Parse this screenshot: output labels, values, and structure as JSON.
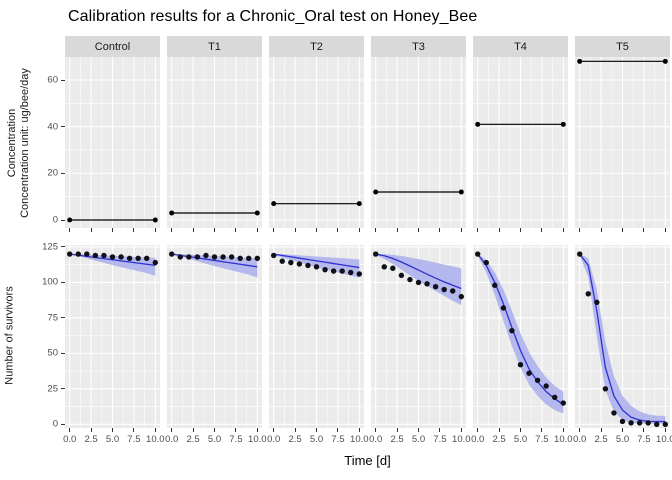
{
  "title": "Calibration results for a Chronic_Oral test on Honey_Bee",
  "facets": [
    "Control",
    "T1",
    "T2",
    "T3",
    "T4",
    "T5"
  ],
  "axes": {
    "x_title": "Time [d]",
    "x_tick_labels": [
      "0.0",
      "2.5",
      "5.0",
      "7.5",
      "10.0"
    ],
    "x_tick_values": [
      0,
      2.5,
      5,
      7.5,
      10
    ],
    "top_y_title_lines": [
      "Concentration",
      "Concentration unit: ug/bee/day"
    ],
    "top_y_ticks": [
      0,
      20,
      40,
      60
    ],
    "bottom_y_title": "Number of survivors",
    "bottom_y_ticks": [
      0,
      25,
      50,
      75,
      100,
      125
    ]
  },
  "colors": {
    "strip_bg": "#d9d9d9",
    "strip_text": "#1a1a1a",
    "panel_bg": "#ebebeb",
    "grid": "#ffffff",
    "concentration_line": "#000000",
    "fit_line": "#3030d0",
    "ribbon": "#b4b8ec",
    "points": "#101018",
    "axis_text": "#4d4d4d",
    "tick_mark": "#333333"
  },
  "chart_data": [
    {
      "type": "line",
      "title": "Concentration",
      "ylabel": "Concentration unit: ug/bee/day",
      "xlabel": "Time [d]",
      "x": [
        0,
        10
      ],
      "ylim": [
        -3,
        70
      ],
      "yticks": [
        0,
        20,
        40,
        60
      ],
      "legend": "none",
      "grid": true,
      "series": [
        {
          "name": "Control",
          "values": [
            0,
            0
          ]
        },
        {
          "name": "T1",
          "values": [
            3,
            3
          ]
        },
        {
          "name": "T2",
          "values": [
            7,
            7
          ]
        },
        {
          "name": "T3",
          "values": [
            12,
            12
          ]
        },
        {
          "name": "T4",
          "values": [
            41,
            41
          ]
        },
        {
          "name": "T5",
          "values": [
            68,
            68
          ]
        }
      ]
    },
    {
      "type": "scatter+line+ribbon",
      "title": "Number of survivors",
      "ylabel": "Number of survivors",
      "xlabel": "Time [d]",
      "x": [
        0,
        1,
        2,
        3,
        4,
        5,
        6,
        7,
        8,
        9,
        10
      ],
      "ylim": [
        -3,
        126
      ],
      "yticks": [
        0,
        25,
        50,
        75,
        100,
        125
      ],
      "legend": "none",
      "grid": true,
      "panels": [
        {
          "name": "Control",
          "observed": [
            120,
            120,
            120,
            119,
            119,
            118,
            118,
            117,
            117,
            117,
            114
          ],
          "fit": [
            120,
            119.2,
            118.4,
            117.6,
            116.8,
            116,
            115.2,
            114.4,
            113.6,
            112.8,
            112
          ],
          "ribbon_lo": [
            120,
            118.6,
            117,
            115.4,
            113.8,
            112.2,
            110.8,
            109.4,
            108,
            106.6,
            104.5
          ],
          "ribbon_hi": [
            120,
            120,
            119.7,
            119.4,
            119.1,
            118.8,
            118.5,
            118.2,
            117.9,
            117.6,
            117.3
          ]
        },
        {
          "name": "T1",
          "observed": [
            120,
            118,
            118,
            118,
            119,
            118,
            118,
            118,
            117,
            117,
            117
          ],
          "fit": [
            120,
            119.1,
            118.2,
            117.3,
            116.4,
            115.5,
            114.6,
            113.7,
            112.8,
            111.9,
            111
          ],
          "ribbon_lo": [
            120,
            118.4,
            116.6,
            114.9,
            113.2,
            111.6,
            110,
            108.5,
            107,
            105.5,
            103.5
          ],
          "ribbon_hi": [
            120,
            120,
            119.6,
            119.3,
            119,
            118.6,
            118.3,
            118,
            117.6,
            117.3,
            117
          ]
        },
        {
          "name": "T2",
          "observed": [
            119,
            115,
            114,
            113,
            112,
            111,
            109,
            108,
            108,
            107,
            106
          ],
          "fit": [
            120,
            119,
            118.1,
            117.1,
            116.2,
            115.2,
            114.3,
            113.3,
            112.4,
            111.4,
            110.5
          ],
          "ribbon_lo": [
            119.5,
            117.5,
            115.7,
            114,
            112.3,
            110.7,
            109.2,
            107.7,
            106.2,
            104.8,
            103.3
          ],
          "ribbon_hi": [
            120,
            120,
            119.5,
            119.1,
            118.7,
            118.3,
            117.9,
            117.5,
            117.1,
            116.7,
            116.3
          ]
        },
        {
          "name": "T3",
          "observed": [
            120,
            111,
            110,
            105,
            102,
            100,
            99,
            97,
            95,
            94,
            90
          ],
          "fit": [
            120,
            118.8,
            116.9,
            114.4,
            111.6,
            108.7,
            105.8,
            103,
            100.4,
            98,
            95.7
          ],
          "ribbon_lo": [
            119.5,
            116.5,
            113,
            109,
            105,
            101,
            97.5,
            94,
            90.5,
            87,
            84
          ],
          "ribbon_hi": [
            120,
            120,
            119.4,
            118.6,
            117.6,
            116.5,
            115.3,
            114,
            112.6,
            111.3,
            110
          ]
        },
        {
          "name": "T4",
          "observed": [
            120,
            114,
            98,
            82,
            66,
            42,
            36,
            31,
            27,
            19,
            15
          ],
          "fit": [
            120,
            112,
            100,
            85,
            68,
            52,
            39,
            30,
            23,
            18,
            14
          ],
          "ribbon_lo": [
            119,
            107,
            91,
            73,
            55,
            40,
            28,
            20,
            14,
            10,
            7.5
          ],
          "ribbon_hi": [
            120,
            116,
            107,
            95,
            80,
            64,
            51,
            41,
            33,
            27,
            23
          ]
        },
        {
          "name": "T5",
          "observed": [
            120,
            92,
            86,
            25,
            8,
            2,
            1,
            1,
            1,
            0,
            0
          ],
          "fit": [
            120,
            112,
            80,
            40,
            20,
            10,
            5,
            3,
            2,
            2,
            2
          ],
          "ribbon_lo": [
            119,
            104,
            62,
            24,
            9,
            3,
            1,
            0.5,
            0.5,
            0.5,
            0.5
          ],
          "ribbon_hi": [
            120,
            117,
            95,
            58,
            34,
            20,
            13,
            9,
            7,
            6,
            6
          ]
        }
      ]
    }
  ]
}
